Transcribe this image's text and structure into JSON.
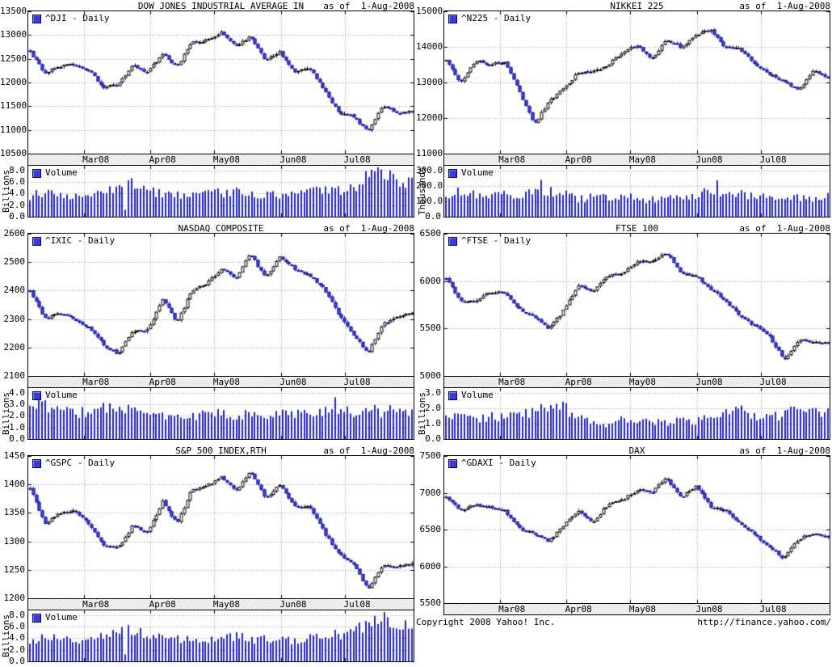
{
  "page": {
    "copyright": "Copyright 2008 Yahoo! Inc.",
    "source_url": "http://finance.yahoo.com/"
  },
  "style": {
    "candle_up_fill": "#ffffff",
    "candle_up_border": "#000000",
    "candle_down_fill": "#4a4ad8",
    "candle_down_border": "#16169e",
    "wick_up": "#000000",
    "wick_down": "#3232cc",
    "volume_bar": "#2424cc",
    "grid": "#9a9a9a",
    "text": "#000000",
    "marker_fill": "#3a3ad4",
    "marker_border": "#000066"
  },
  "x_axis": {
    "month_fractions": [
      0.144,
      0.317,
      0.483,
      0.656,
      0.822
    ]
  },
  "chart_data": [
    {
      "type": "candlestick",
      "symbol": "^DJI",
      "title": "DOW JONES INDUSTRIAL AVERAGE IN",
      "as_of": "as of  1-Aug-2008",
      "legend": "^DJI - Daily",
      "x_tick_labels": [
        "Mar08",
        "Apr08",
        "May08",
        "Jun08",
        "Jul08"
      ],
      "x_range": [
        "Feb-2008",
        "1-Aug-2008"
      ],
      "ylim": [
        10500,
        13500
      ],
      "y_ticks": [
        13500,
        13000,
        12500,
        12000,
        11500,
        11000,
        10500
      ],
      "weekly_closes_est": [
        12650,
        12200,
        12350,
        12380,
        12260,
        11900,
        11950,
        12360,
        12220,
        12610,
        12330,
        12850,
        12890,
        13060,
        12750,
        12990,
        12480,
        12640,
        12210,
        12310,
        11840,
        11350,
        11290,
        10960,
        11500,
        11370,
        11378
      ],
      "has_volume": true,
      "volume": {
        "legend": "Volume",
        "axis_label": "Billions",
        "ylim": [
          0,
          8.8
        ],
        "y_ticks": [
          8.0,
          6.0,
          4.0,
          2.0,
          0.0
        ],
        "weekly_values_est": [
          3.6,
          4.3,
          4.0,
          3.8,
          3.7,
          4.2,
          4.9,
          5.8,
          4.2,
          4.1,
          3.7,
          3.6,
          3.8,
          4.1,
          4.3,
          3.9,
          3.8,
          3.9,
          3.7,
          4.1,
          4.4,
          4.7,
          5.1,
          6.8,
          7.7,
          6.4,
          5.6
        ],
        "spikes": [
          {
            "frac": 0.245,
            "value": 1.2
          },
          {
            "frac": 0.255,
            "value": 6.3
          }
        ]
      }
    },
    {
      "type": "candlestick",
      "symbol": "^N225",
      "title": "NIKKEI 225",
      "as_of": "as of  1-Aug-2008",
      "legend": "^N225 - Daily",
      "x_tick_labels": [
        "Mar08",
        "Apr08",
        "May08",
        "Jun08",
        "Jul08"
      ],
      "x_range": [
        "Feb-2008",
        "1-Aug-2008"
      ],
      "ylim": [
        11000,
        15000
      ],
      "y_ticks": [
        15000,
        14000,
        13000,
        12000,
        11000
      ],
      "weekly_closes_est": [
        13600,
        13000,
        13620,
        13500,
        13600,
        12780,
        11790,
        12480,
        12820,
        13290,
        13320,
        13480,
        13860,
        14050,
        13650,
        14220,
        13980,
        14340,
        14490,
        13970,
        13940,
        13540,
        13240,
        13040,
        12800,
        13330,
        13094
      ],
      "has_volume": true,
      "volume": {
        "legend": "Volume",
        "axis_label": "Thousands",
        "ylim": [
          0,
          330
        ],
        "y_ticks": [
          300.0,
          200.0,
          100.0,
          0.0
        ],
        "weekly_values_est": [
          135,
          172,
          150,
          148,
          140,
          130,
          155,
          165,
          150,
          112,
          125,
          130,
          135,
          120,
          108,
          140,
          115,
          145,
          160,
          162,
          158,
          130,
          125,
          118,
          130,
          105,
          140
        ],
        "spikes": [
          {
            "frac": 0.247,
            "value": 238
          },
          {
            "frac": 0.7,
            "value": 235
          }
        ]
      }
    },
    {
      "type": "candlestick",
      "symbol": "^IXIC",
      "title": "NASDAQ COMPOSITE",
      "as_of": "as of  1-Aug-2008",
      "legend": "^IXIC - Daily",
      "x_tick_labels": [
        "Mar08",
        "Apr08",
        "May08",
        "Jun08",
        "Jul08"
      ],
      "x_range": [
        "Feb-2008",
        "1-Aug-2008"
      ],
      "ylim": [
        2100,
        2600
      ],
      "y_ticks": [
        2600,
        2500,
        2400,
        2300,
        2200,
        2100
      ],
      "weekly_closes_est": [
        2400,
        2300,
        2320,
        2300,
        2270,
        2210,
        2177,
        2258,
        2260,
        2370,
        2290,
        2400,
        2423,
        2477,
        2445,
        2529,
        2445,
        2522,
        2475,
        2454,
        2406,
        2316,
        2245,
        2180,
        2282,
        2311,
        2326
      ],
      "has_volume": true,
      "volume": {
        "legend": "Volume",
        "axis_label": "Billions",
        "ylim": [
          0,
          4.4
        ],
        "y_ticks": [
          4.0,
          3.0,
          2.0,
          1.0,
          0.0
        ],
        "weekly_values_est": [
          2.5,
          3.0,
          2.3,
          2.3,
          2.4,
          2.6,
          2.8,
          2.5,
          2.2,
          2.0,
          1.9,
          2.0,
          2.1,
          2.3,
          2.1,
          2.1,
          2.0,
          2.2,
          2.1,
          2.2,
          2.4,
          2.2,
          2.4,
          2.6,
          2.3,
          2.5,
          2.4
        ],
        "spikes": [
          {
            "frac": 0.79,
            "value": 3.6
          }
        ]
      }
    },
    {
      "type": "candlestick",
      "symbol": "^FTSE",
      "title": "FTSE 100",
      "as_of": "as of  1-Aug-2008",
      "legend": "^FTSE - Daily",
      "x_tick_labels": [
        "Mar08",
        "Apr08",
        "May08",
        "Jun08",
        "Jul08"
      ],
      "x_range": [
        "Feb-2008",
        "1-Aug-2008"
      ],
      "ylim": [
        5000,
        6500
      ],
      "y_ticks": [
        6500,
        6000,
        5500,
        5000
      ],
      "weekly_closes_est": [
        6030,
        5780,
        5790,
        5890,
        5880,
        5700,
        5630,
        5495,
        5690,
        5950,
        5895,
        6056,
        6090,
        6215,
        6204,
        6304,
        6087,
        6054,
        5906,
        5803,
        5620,
        5530,
        5413,
        5171,
        5376,
        5352,
        5354
      ],
      "has_volume": true,
      "volume": {
        "legend": "Volume",
        "axis_label": "Billions",
        "ylim": [
          0,
          3.3
        ],
        "y_ticks": [
          3.0,
          2.0,
          1.0,
          0.0
        ],
        "weekly_values_est": [
          1.4,
          1.65,
          1.25,
          1.45,
          1.35,
          1.55,
          1.7,
          2.15,
          2.0,
          1.45,
          1.0,
          0.95,
          1.25,
          1.3,
          1.15,
          1.0,
          1.2,
          1.15,
          1.35,
          1.55,
          1.9,
          1.5,
          1.4,
          1.6,
          2.05,
          1.9,
          1.75
        ],
        "spikes": []
      }
    },
    {
      "type": "candlestick",
      "symbol": "^GSPC",
      "title": "S&P 500 INDEX,RTH",
      "as_of": "as of  1-Aug-2008",
      "legend": "^GSPC - Daily",
      "x_tick_labels": [
        "Mar08",
        "Apr08",
        "May08",
        "Jun08",
        "Jul08"
      ],
      "x_range": [
        "Feb-2008",
        "1-Aug-2008"
      ],
      "ylim": [
        1200,
        1450
      ],
      "y_ticks": [
        1450,
        1400,
        1350,
        1300,
        1250,
        1200
      ],
      "weekly_closes_est": [
        1395,
        1331,
        1349,
        1353,
        1330,
        1293,
        1288,
        1329,
        1315,
        1370,
        1332,
        1390,
        1397,
        1413,
        1388,
        1425,
        1375,
        1400,
        1360,
        1360,
        1317,
        1278,
        1262,
        1215,
        1260,
        1257,
        1260
      ],
      "has_volume": true,
      "volume": {
        "legend": "Volume",
        "axis_label": "Billions",
        "ylim": [
          0,
          8.8
        ],
        "y_ticks": [
          8.0,
          6.0,
          4.0,
          2.0,
          0.0
        ],
        "weekly_values_est": [
          3.6,
          4.3,
          4.0,
          3.8,
          3.7,
          4.2,
          4.9,
          5.8,
          4.2,
          4.1,
          3.7,
          3.6,
          3.8,
          4.1,
          4.3,
          3.9,
          3.8,
          3.9,
          3.7,
          4.1,
          4.4,
          4.7,
          5.1,
          6.8,
          7.7,
          6.4,
          5.6
        ],
        "spikes": [
          {
            "frac": 0.245,
            "value": 1.2
          },
          {
            "frac": 0.255,
            "value": 6.3
          }
        ]
      }
    },
    {
      "type": "candlestick",
      "symbol": "^GDAXI",
      "title": "DAX",
      "as_of": "as of  1-Aug-2008",
      "legend": "^GDAXI - Daily",
      "x_tick_labels": [
        "Mar08",
        "Apr08",
        "May08",
        "Jun08",
        "Jul08"
      ],
      "x_range": [
        "Feb-2008",
        "1-Aug-2008"
      ],
      "ylim": [
        5500,
        7500
      ],
      "y_ticks": [
        7500,
        7000,
        6500,
        6000,
        5500
      ],
      "weekly_closes_est": [
        6950,
        6770,
        6830,
        6810,
        6750,
        6515,
        6450,
        6340,
        6560,
        6763,
        6603,
        6843,
        6897,
        7043,
        7003,
        7200,
        6944,
        7096,
        6804,
        6765,
        6578,
        6421,
        6272,
        6100,
        6382,
        6437,
        6396
      ],
      "has_volume": false
    }
  ]
}
